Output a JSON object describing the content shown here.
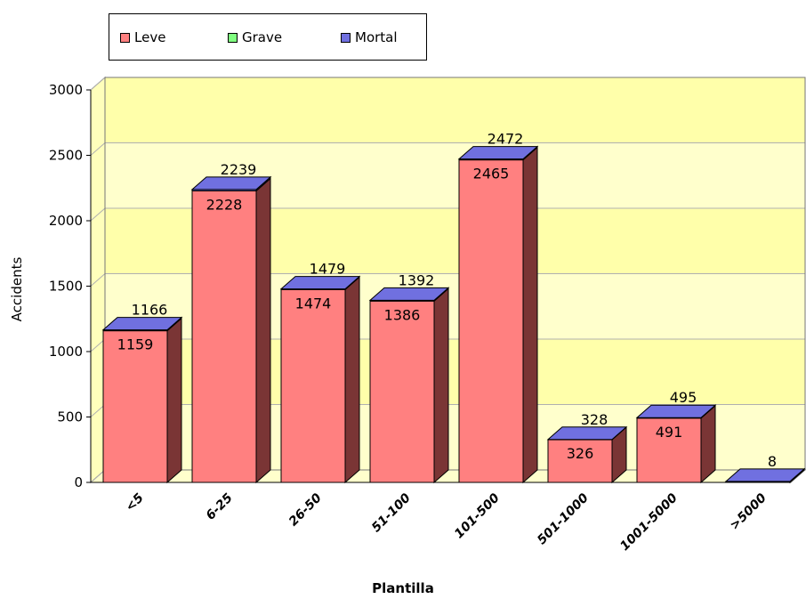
{
  "legend": [
    {
      "label": "Leve",
      "color": "#ff8080"
    },
    {
      "label": "Grave",
      "color": "#80ff80"
    },
    {
      "label": "Mortal",
      "color": "#7070e0"
    }
  ],
  "chart_data": {
    "type": "bar",
    "style": "3d-stacked",
    "xlabel": "Plantilla",
    "ylabel": "Accidents",
    "ylim": [
      0,
      3000
    ],
    "yticks": [
      0,
      500,
      1000,
      1500,
      2000,
      2500,
      3000
    ],
    "categories": [
      "<5",
      "6-25",
      "26-50",
      "51-100",
      "101-500",
      "501-1000",
      "1001-5000",
      ">5000"
    ],
    "series": [
      {
        "name": "Leve",
        "color": "#ff8080",
        "values": [
          1159,
          2228,
          1474,
          1386,
          2465,
          326,
          491,
          null
        ]
      },
      {
        "name": "Mortal",
        "color": "#7070e0",
        "values": [
          1166,
          2239,
          1479,
          1392,
          2472,
          328,
          495,
          8
        ]
      }
    ],
    "grid": true,
    "legend_position": "top-left",
    "background_bands": [
      "#ffffcc",
      "#ffffaa"
    ]
  }
}
